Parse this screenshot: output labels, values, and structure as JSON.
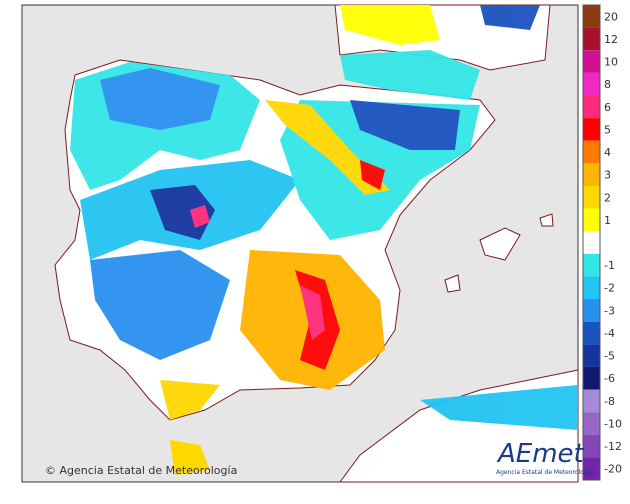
{
  "map": {
    "credit": "© Agencia Estatal de Meteorología",
    "logo": {
      "name": "AEmet",
      "subtitle": "Agencia Estatal de Meteorología"
    },
    "legend": [
      {
        "label": 20,
        "color": "#8b3a12"
      },
      {
        "label": 12,
        "color": "#a8102e"
      },
      {
        "label": 10,
        "color": "#d01090"
      },
      {
        "label": 8,
        "color": "#f028c8"
      },
      {
        "label": 6,
        "color": "#ff2a7a"
      },
      {
        "label": 5,
        "color": "#ff0000"
      },
      {
        "label": 4,
        "color": "#ff7a00"
      },
      {
        "label": 3,
        "color": "#ffb400"
      },
      {
        "label": 2,
        "color": "#ffd800"
      },
      {
        "label": 1,
        "color": "#ffff00"
      },
      {
        "label": -1,
        "color": "#33e6e6"
      },
      {
        "label": -2,
        "color": "#22c4f2"
      },
      {
        "label": -3,
        "color": "#2a90f0"
      },
      {
        "label": -4,
        "color": "#1a52c0"
      },
      {
        "label": -5,
        "color": "#1434a0"
      },
      {
        "label": -6,
        "color": "#121a70"
      },
      {
        "label": -8,
        "color": "#a68ad6"
      },
      {
        "label": -10,
        "color": "#9466c6"
      },
      {
        "label": -12,
        "color": "#8246b6"
      },
      {
        "label": -20,
        "color": "#7224a6"
      }
    ]
  }
}
